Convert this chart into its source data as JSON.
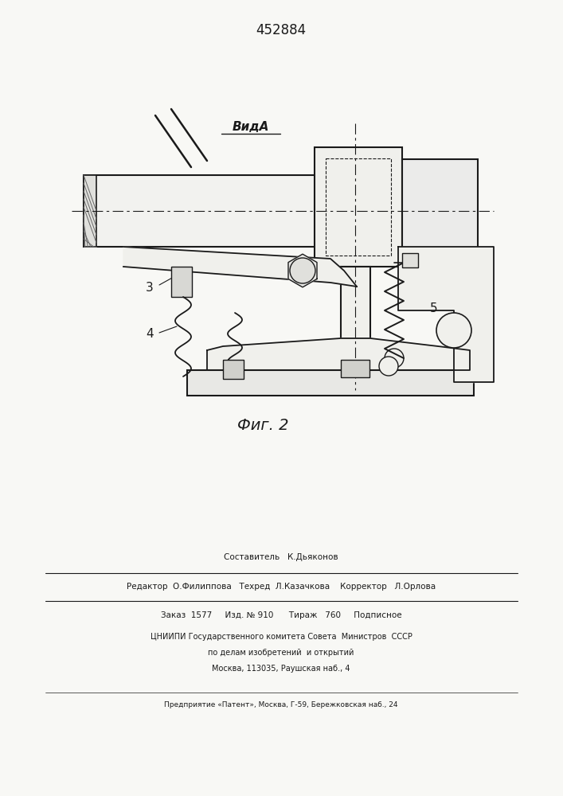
{
  "patent_number": "452884",
  "fig_label": "Фиг. 2",
  "view_label": "ВидA",
  "footer_lines": [
    "Составитель   К.Дьяконов",
    "Редактор  О.Филиппова   Техред  Л.Казачкова    Корректор   Л.Орлова",
    "Заказ  1577     Изд. № 910      Тираж   760     Подписное",
    "ЦНИИПИ Государственного комитета Совета  Министров  СССР",
    "по делам изобретений  и открытий",
    "Москва, 113035, Раушская наб., 4",
    "Предприятие «Патент», Москва, Г-59, Бережковская наб., 24"
  ],
  "bg_color": "#f8f8f5",
  "line_color": "#1a1a1a"
}
